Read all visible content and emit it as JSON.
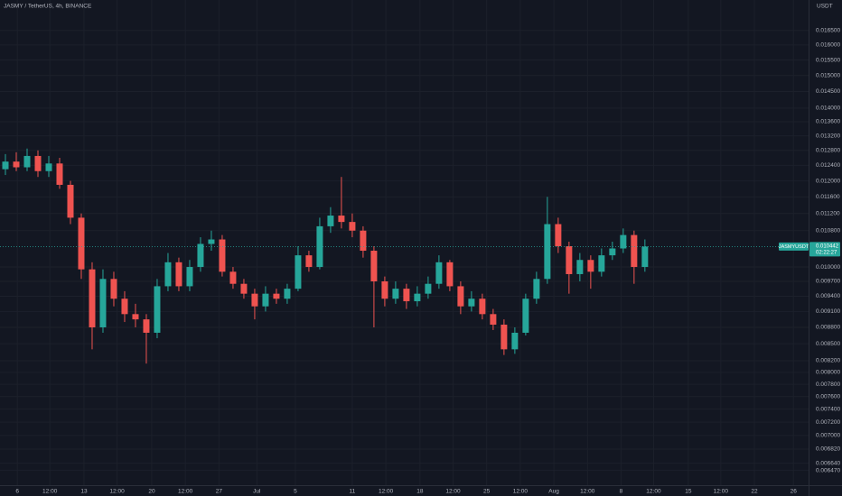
{
  "chart_data": {
    "type": "candlestick",
    "title": "JASMY / TetherUS, 4h, BINANCE",
    "y_axis_label": "USDT",
    "symbol_label": "JASMYUSDT",
    "last_price": 0.010442,
    "countdown": "02:22:27",
    "log_scale": true,
    "grid": true,
    "up_color": "#26a69a",
    "down_color": "#ef5350",
    "ylim": [
      0.0063,
      0.0176
    ],
    "yticks": [
      {
        "value": 0.0165,
        "label": "0.016500"
      },
      {
        "value": 0.016,
        "label": "0.016000"
      },
      {
        "value": 0.0155,
        "label": "0.015500"
      },
      {
        "value": 0.015,
        "label": "0.015000"
      },
      {
        "value": 0.0145,
        "label": "0.014500"
      },
      {
        "value": 0.014,
        "label": "0.014000"
      },
      {
        "value": 0.0136,
        "label": "0.013600"
      },
      {
        "value": 0.0132,
        "label": "0.013200"
      },
      {
        "value": 0.0128,
        "label": "0.012800"
      },
      {
        "value": 0.0124,
        "label": "0.012400"
      },
      {
        "value": 0.012,
        "label": "0.012000"
      },
      {
        "value": 0.0116,
        "label": "0.011600"
      },
      {
        "value": 0.0112,
        "label": "0.011200"
      },
      {
        "value": 0.0108,
        "label": "0.010800"
      },
      {
        "value": 0.01,
        "label": "0.010000"
      },
      {
        "value": 0.0097,
        "label": "0.009700"
      },
      {
        "value": 0.0094,
        "label": "0.009400"
      },
      {
        "value": 0.0091,
        "label": "0.009100"
      },
      {
        "value": 0.0088,
        "label": "0.008800"
      },
      {
        "value": 0.0085,
        "label": "0.008500"
      },
      {
        "value": 0.0082,
        "label": "0.008200"
      },
      {
        "value": 0.008,
        "label": "0.008000"
      },
      {
        "value": 0.0078,
        "label": "0.007800"
      },
      {
        "value": 0.0076,
        "label": "0.007600"
      },
      {
        "value": 0.0074,
        "label": "0.007400"
      },
      {
        "value": 0.0072,
        "label": "0.007200"
      },
      {
        "value": 0.007,
        "label": "0.007000"
      },
      {
        "value": 0.0068,
        "label": "0.006820"
      },
      {
        "value": 0.0066,
        "label": "0.006640"
      },
      {
        "value": 0.0065,
        "label": "0.006470"
      }
    ],
    "xlim": [
      -0.5,
      74.1
    ],
    "xticks": [
      {
        "value": 1.1,
        "label": "6"
      },
      {
        "value": 4.1,
        "label": "12:00"
      },
      {
        "value": 7.25,
        "label": "13"
      },
      {
        "value": 10.3,
        "label": "12:00"
      },
      {
        "value": 13.5,
        "label": "20"
      },
      {
        "value": 16.6,
        "label": "12:00"
      },
      {
        "value": 19.7,
        "label": "27"
      },
      {
        "value": 23.2,
        "label": "Jul"
      },
      {
        "value": 26.75,
        "label": "5"
      },
      {
        "value": 32,
        "label": "11"
      },
      {
        "value": 35.1,
        "label": "12:00"
      },
      {
        "value": 38.25,
        "label": "18"
      },
      {
        "value": 41.3,
        "label": "12:00"
      },
      {
        "value": 44.4,
        "label": "25"
      },
      {
        "value": 47.5,
        "label": "12:00"
      },
      {
        "value": 50.6,
        "label": "Aug"
      },
      {
        "value": 53.7,
        "label": "12:00"
      },
      {
        "value": 56.8,
        "label": "8"
      },
      {
        "value": 59.8,
        "label": "12:00"
      },
      {
        "value": 63,
        "label": "15"
      },
      {
        "value": 66,
        "label": "12:00"
      },
      {
        "value": 69.1,
        "label": "22"
      },
      {
        "value": 72.7,
        "label": "26"
      }
    ],
    "open": [
      0.0123,
      0.0125,
      0.01235,
      0.01265,
      0.01225,
      0.01245,
      0.0119,
      0.0111,
      0.00995,
      0.0088,
      0.00975,
      0.00935,
      0.00905,
      0.00895,
      0.0087,
      0.0096,
      0.0101,
      0.0096,
      0.01,
      0.0105,
      0.0106,
      0.0099,
      0.00965,
      0.00945,
      0.0092,
      0.00945,
      0.00935,
      0.00955,
      0.01025,
      0.01,
      0.0109,
      0.01115,
      0.011,
      0.0108,
      0.01035,
      0.0097,
      0.00935,
      0.00955,
      0.0093,
      0.00945,
      0.00965,
      0.0101,
      0.0096,
      0.0092,
      0.00935,
      0.00905,
      0.00885,
      0.0084,
      0.0087,
      0.00935,
      0.00975,
      0.01095,
      0.01045,
      0.00985,
      0.01015,
      0.0099,
      0.01025,
      0.0104,
      0.0107,
      0.01
    ],
    "high": [
      0.0127,
      0.01275,
      0.01285,
      0.0128,
      0.01265,
      0.0126,
      0.012,
      0.0112,
      0.0101,
      0.00995,
      0.0099,
      0.0095,
      0.00925,
      0.00905,
      0.00975,
      0.0103,
      0.0102,
      0.01015,
      0.01065,
      0.0108,
      0.0107,
      0.01,
      0.00975,
      0.00955,
      0.0096,
      0.00955,
      0.00965,
      0.01045,
      0.01035,
      0.0111,
      0.01135,
      0.0121,
      0.0112,
      0.0109,
      0.01045,
      0.0098,
      0.0097,
      0.00965,
      0.0096,
      0.0098,
      0.01025,
      0.01015,
      0.0097,
      0.0095,
      0.00945,
      0.00915,
      0.00895,
      0.0088,
      0.00945,
      0.0099,
      0.0116,
      0.0111,
      0.01055,
      0.0103,
      0.01025,
      0.0104,
      0.01055,
      0.01085,
      0.0108,
      0.0106
    ],
    "low": [
      0.01215,
      0.01225,
      0.01225,
      0.0121,
      0.0121,
      0.0118,
      0.01095,
      0.00975,
      0.0084,
      0.0087,
      0.0092,
      0.0089,
      0.0088,
      0.00815,
      0.0086,
      0.0095,
      0.0095,
      0.0095,
      0.0099,
      0.01035,
      0.0098,
      0.00955,
      0.00935,
      0.00895,
      0.0091,
      0.00925,
      0.00925,
      0.0095,
      0.0099,
      0.00995,
      0.01075,
      0.01085,
      0.01065,
      0.0102,
      0.0088,
      0.0092,
      0.00925,
      0.00915,
      0.0092,
      0.00935,
      0.00955,
      0.0095,
      0.00905,
      0.0091,
      0.00895,
      0.00875,
      0.0083,
      0.00832,
      0.00865,
      0.00925,
      0.00965,
      0.0103,
      0.00945,
      0.0097,
      0.00955,
      0.0098,
      0.01015,
      0.0103,
      0.00965,
      0.0099
    ],
    "close": [
      0.0125,
      0.01235,
      0.01265,
      0.01225,
      0.01245,
      0.0119,
      0.0111,
      0.00995,
      0.0088,
      0.00975,
      0.00935,
      0.00905,
      0.00895,
      0.0087,
      0.0096,
      0.0101,
      0.0096,
      0.01,
      0.0105,
      0.0106,
      0.0099,
      0.00965,
      0.00945,
      0.0092,
      0.00945,
      0.00935,
      0.00955,
      0.01025,
      0.01,
      0.0109,
      0.01115,
      0.011,
      0.0108,
      0.01035,
      0.0097,
      0.00935,
      0.00955,
      0.0093,
      0.00945,
      0.00965,
      0.0101,
      0.0096,
      0.0092,
      0.00935,
      0.00905,
      0.00885,
      0.0084,
      0.0087,
      0.00935,
      0.00975,
      0.01095,
      0.01045,
      0.00985,
      0.01015,
      0.0099,
      0.01025,
      0.0104,
      0.0107,
      0.01,
      0.010442
    ]
  }
}
